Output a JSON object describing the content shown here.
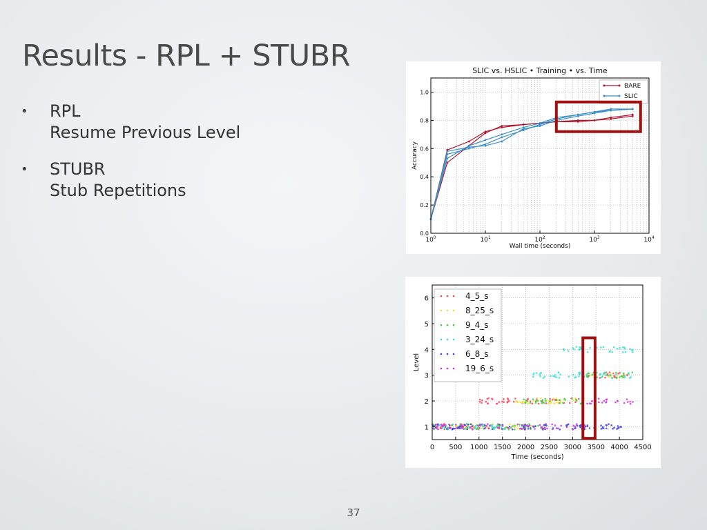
{
  "slide": {
    "title": "Results - RPL + STUBR",
    "bullets": [
      {
        "marker": "•",
        "heading": "RPL",
        "detail": "Resume Previous Level"
      },
      {
        "marker": "•",
        "heading": "STUBR",
        "detail": "Stub Repetitions"
      }
    ],
    "page_number": "37"
  },
  "colors": {
    "title": "#4a4a4a",
    "text": "#333333",
    "highlight": "#a01010",
    "bare": "#b0142a",
    "slic": "#3a8fc8"
  },
  "chart_data": [
    {
      "type": "line",
      "title": "SLIC vs. HSLIC  • Training  • vs. Time",
      "xlabel": "Wall time (seconds)",
      "ylabel": "Accuracy",
      "xscale": "log",
      "xlim": [
        1,
        10000
      ],
      "ylim": [
        0.0,
        1.1
      ],
      "x_ticks": [
        "10^0",
        "10^1",
        "10^2",
        "10^3",
        "10^4"
      ],
      "y_ticks": [
        "0.0",
        "0.2",
        "0.4",
        "0.6",
        "0.8",
        "1.0"
      ],
      "grid": true,
      "legend_position": "top-right",
      "legend": [
        "BARE",
        "SLIC"
      ],
      "series": [
        {
          "name": "BARE",
          "color": "#b0142a",
          "x": [
            1,
            2,
            5,
            10,
            20,
            50,
            100,
            200,
            500,
            1000,
            2000,
            5000
          ],
          "y": [
            0.1,
            0.59,
            0.65,
            0.72,
            0.75,
            0.77,
            0.78,
            0.79,
            0.8,
            0.8,
            0.82,
            0.84
          ]
        },
        {
          "name": "BARE",
          "color": "#b0142a",
          "x": [
            1,
            2,
            5,
            10,
            20,
            50,
            100,
            200,
            500,
            1000,
            2000,
            5000
          ],
          "y": [
            0.1,
            0.5,
            0.62,
            0.71,
            0.76,
            0.77,
            0.78,
            0.79,
            0.79,
            0.8,
            0.81,
            0.83
          ]
        },
        {
          "name": "SLIC",
          "color": "#3a8fc8",
          "x": [
            1,
            2,
            5,
            10,
            20,
            50,
            100,
            200,
            500,
            1000,
            2000,
            5000
          ],
          "y": [
            0.1,
            0.56,
            0.6,
            0.63,
            0.68,
            0.73,
            0.77,
            0.81,
            0.84,
            0.86,
            0.87,
            0.88
          ]
        },
        {
          "name": "SLIC",
          "color": "#3a8fc8",
          "x": [
            1,
            2,
            5,
            10,
            20,
            50,
            100,
            200,
            500,
            1000,
            2000,
            5000
          ],
          "y": [
            0.1,
            0.53,
            0.62,
            0.66,
            0.7,
            0.75,
            0.78,
            0.82,
            0.84,
            0.86,
            0.88,
            0.88
          ]
        },
        {
          "name": "SLIC",
          "color": "#3a8fc8",
          "x": [
            1,
            2,
            5,
            10,
            20,
            50,
            100,
            200,
            500,
            1000,
            2000,
            5000
          ],
          "y": [
            0.1,
            0.58,
            0.61,
            0.62,
            0.65,
            0.74,
            0.76,
            0.8,
            0.83,
            0.85,
            0.87,
            0.88
          ]
        }
      ],
      "annotations": [
        {
          "type": "highlight-box",
          "x": [
            200,
            7000
          ],
          "y": [
            0.72,
            0.93
          ]
        }
      ]
    },
    {
      "type": "scatter",
      "xlabel": "Time (seconds)",
      "ylabel": "Level",
      "xlim": [
        0,
        4500
      ],
      "ylim": [
        0.5,
        6.5
      ],
      "x_ticks": [
        "0",
        "500",
        "1000",
        "1500",
        "2000",
        "2500",
        "3000",
        "3500",
        "4000",
        "4500"
      ],
      "y_ticks": [
        "1",
        "2",
        "3",
        "4",
        "5",
        "6"
      ],
      "grid": true,
      "legend_position": "top-left",
      "series": [
        {
          "name": "4_5_s",
          "color": "#ff4060",
          "level_ranges": [
            {
              "level": 1,
              "x": [
                0,
                1500
              ]
            },
            {
              "level": 2,
              "x": [
                1000,
                3300
              ]
            },
            {
              "level": 3,
              "x": [
                3300,
                4200
              ]
            }
          ]
        },
        {
          "name": "8_25_s",
          "color": "#f0e030",
          "level_ranges": [
            {
              "level": 1,
              "x": [
                0,
                2200
              ]
            },
            {
              "level": 2,
              "x": [
                1800,
                3300
              ]
            },
            {
              "level": 3,
              "x": [
                3400,
                4300
              ]
            }
          ]
        },
        {
          "name": "9_4_s",
          "color": "#40d040",
          "level_ranges": [
            {
              "level": 1,
              "x": [
                0,
                2500
              ]
            },
            {
              "level": 2,
              "x": [
                1900,
                3200
              ]
            },
            {
              "level": 3,
              "x": [
                3200,
                4300
              ]
            }
          ]
        },
        {
          "name": "3_24_s",
          "color": "#30e0e0",
          "level_ranges": [
            {
              "level": 1,
              "x": [
                0,
                1600
              ]
            },
            {
              "level": 3,
              "x": [
                2100,
                4300
              ]
            },
            {
              "level": 4,
              "x": [
                2800,
                4300
              ]
            }
          ]
        },
        {
          "name": "6_8_s",
          "color": "#4040e0",
          "level_ranges": [
            {
              "level": 1,
              "x": [
                0,
                4100
              ]
            }
          ]
        },
        {
          "name": "19_6_s",
          "color": "#d030e0",
          "level_ranges": [
            {
              "level": 1,
              "x": [
                0,
                3300
              ]
            },
            {
              "level": 2,
              "x": [
                3300,
                4300
              ]
            }
          ]
        }
      ],
      "annotations": [
        {
          "type": "highlight-box",
          "x": [
            3220,
            3480
          ],
          "y": [
            0.55,
            4.45
          ]
        }
      ]
    }
  ]
}
